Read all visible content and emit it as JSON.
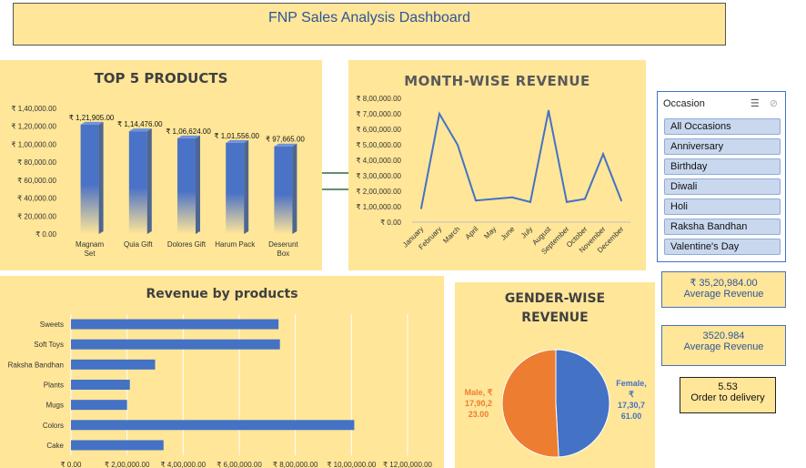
{
  "dashboard": {
    "title": "FNP Sales Analysis Dashboard"
  },
  "colors": {
    "panel": "#ffe699",
    "bar": "#4472c4",
    "male": "#ed7d31",
    "female": "#4472c4"
  },
  "charts": [
    {
      "id": "top5",
      "type": "bar",
      "title": "TOP 5 PRODUCTS",
      "categories": [
        "Magnam Set",
        "Quia Gift",
        "Dolores Gift",
        "Harum Pack",
        "Deserunt Box"
      ],
      "values": [
        121905,
        114476,
        106624,
        101556,
        97665
      ],
      "data_labels": [
        "₹ 1,21,905.00",
        "₹ 1,14,476.00",
        "₹ 1,06,624.00",
        "₹ 1,01,556.00",
        "₹ 97,665.00"
      ],
      "ylim": [
        0,
        140000
      ],
      "yticks": [
        0,
        20000,
        40000,
        60000,
        80000,
        100000,
        120000,
        140000
      ],
      "ytick_labels": [
        "₹ 0.00",
        "₹ 20,000.00",
        "₹ 40,000.00",
        "₹ 60,000.00",
        "₹ 80,000.00",
        "₹ 1,00,000.00",
        "₹ 1,20,000.00",
        "₹ 1,40,000.00"
      ]
    },
    {
      "id": "monthly",
      "type": "line",
      "title": "MONTH-WISE REVENUE",
      "categories": [
        "January",
        "February",
        "March",
        "April",
        "May",
        "June",
        "July",
        "August",
        "September",
        "October",
        "November",
        "December"
      ],
      "values": [
        90000,
        700000,
        500000,
        140000,
        150000,
        160000,
        130000,
        720000,
        130000,
        150000,
        440000,
        140000
      ],
      "ylim": [
        0,
        800000
      ],
      "yticks": [
        0,
        100000,
        200000,
        300000,
        400000,
        500000,
        600000,
        700000,
        800000
      ],
      "ytick_labels": [
        "₹ 0.00",
        "₹ 1,00,000.00",
        "₹ 2,00,000.00",
        "₹ 3,00,000.00",
        "₹ 4,00,000.00",
        "₹ 5,00,000.00",
        "₹ 6,00,000.00",
        "₹ 7,00,000.00",
        "₹ 8,00,000.00"
      ]
    },
    {
      "id": "byproduct",
      "type": "bar",
      "orientation": "horizontal",
      "title": "Revenue by products",
      "categories": [
        "Sweets",
        "Soft Toys",
        "Raksha Bandhan",
        "Plants",
        "Mugs",
        "Colors",
        "Cake"
      ],
      "values": [
        740000,
        745000,
        300000,
        210000,
        200000,
        1010000,
        330000
      ],
      "xlim": [
        0,
        1200000
      ],
      "xticks": [
        0,
        200000,
        400000,
        600000,
        800000,
        1000000,
        1200000
      ],
      "xtick_labels": [
        "₹ 0.00",
        "₹ 2,00,000.00",
        "₹ 4,00,000.00",
        "₹ 6,00,000.00",
        "₹ 8,00,000.00",
        "₹ 10,00,000.00",
        "₹ 12,00,000.00"
      ]
    },
    {
      "id": "gender",
      "type": "pie",
      "title_lines": [
        "GENDER-WISE",
        "REVENUE"
      ],
      "slices": [
        {
          "label_lines": [
            "Female,",
            "₹",
            "17,30,7",
            "61.00"
          ],
          "value": 1730761
        },
        {
          "label_lines": [
            "Male, ₹",
            "17,90,2",
            "23.00"
          ],
          "value": 1790223
        }
      ]
    }
  ],
  "slicer": {
    "header": "Occasion",
    "items": [
      "All Occasions",
      "Anniversary",
      "Birthday",
      "Diwali",
      "Holi",
      "Raksha Bandhan",
      "Valentine's Day"
    ]
  },
  "kpis": [
    {
      "value": "₹ 35,20,984.00",
      "label": "Average Revenue"
    },
    {
      "value": "3520.984",
      "label": "Average Revenue"
    },
    {
      "value": "5.53",
      "label": "Order to delivery"
    }
  ]
}
